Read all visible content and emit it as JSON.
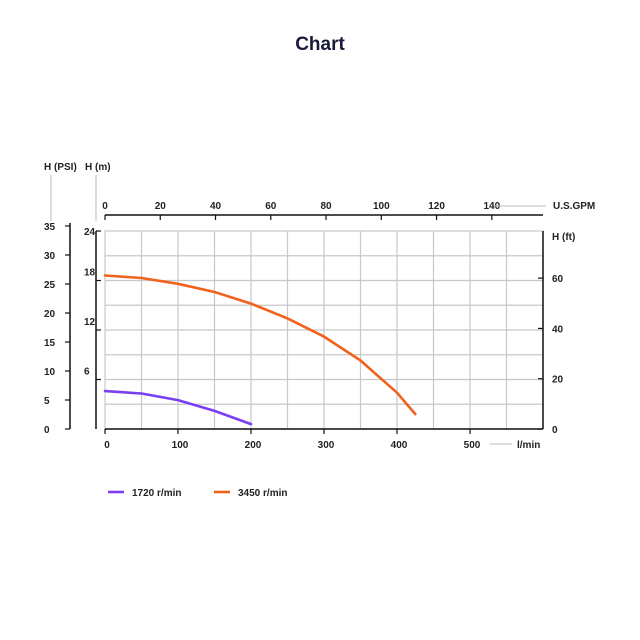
{
  "title": "Chart",
  "chart_data": {
    "type": "line",
    "title": "Chart",
    "x_axis_bottom": {
      "label": "l/min",
      "ticks": [
        0,
        100,
        200,
        300,
        400,
        500
      ],
      "range": [
        0,
        600
      ]
    },
    "x_axis_top": {
      "label": "U.S.GPM",
      "ticks": [
        0,
        20,
        40,
        60,
        80,
        100,
        120,
        140
      ]
    },
    "y_axis_psi": {
      "label": "H (PSI)",
      "ticks": [
        0,
        5,
        10,
        15,
        20,
        25,
        30,
        35
      ]
    },
    "y_axis_m": {
      "label": "H (m)",
      "ticks": [
        6,
        12,
        18,
        24
      ],
      "range": [
        0,
        24
      ]
    },
    "y_axis_ft": {
      "label": "H (ft)",
      "ticks": [
        0,
        20,
        40,
        60
      ]
    },
    "grid": true,
    "legend_position": "bottom-left",
    "series": [
      {
        "name": "1720 r/min",
        "color": "#7b3ff2",
        "x": [
          0,
          50,
          100,
          150,
          200
        ],
        "y": [
          4.6,
          4.3,
          3.5,
          2.2,
          0.6
        ]
      },
      {
        "name": "3450 r/min",
        "color": "#f0621e",
        "x": [
          0,
          50,
          100,
          150,
          200,
          250,
          300,
          350,
          400,
          425
        ],
        "y": [
          18.6,
          18.3,
          17.6,
          16.6,
          15.2,
          13.4,
          11.2,
          8.3,
          4.4,
          1.8
        ]
      }
    ]
  }
}
